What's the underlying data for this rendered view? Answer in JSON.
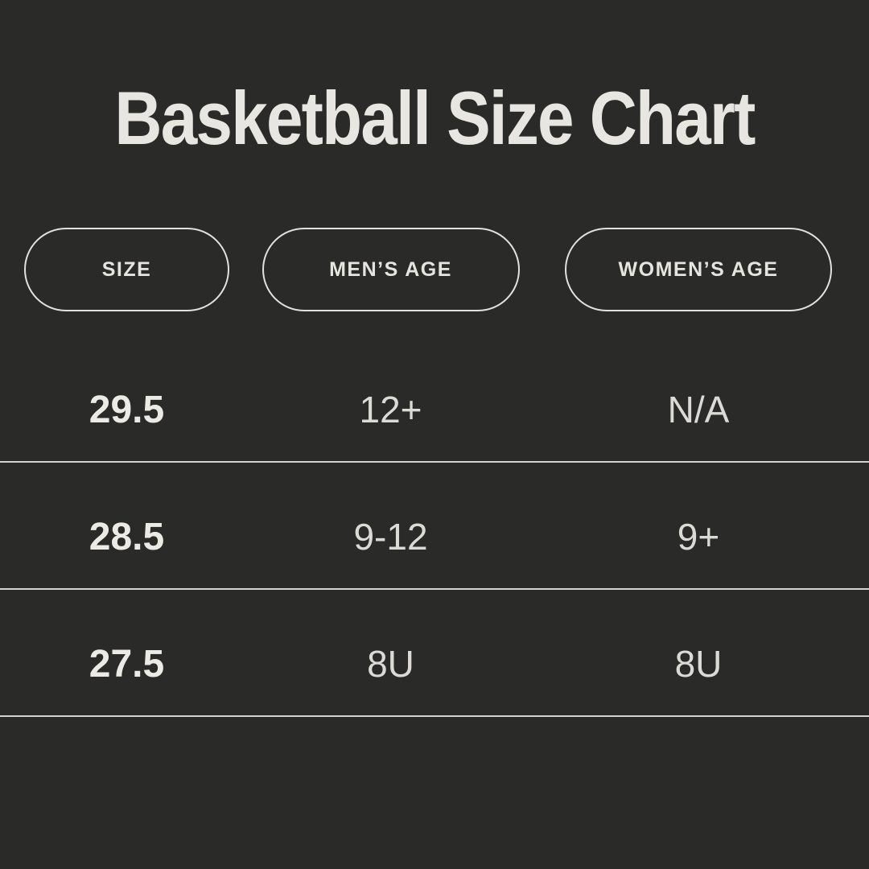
{
  "title": "Basketball Size Chart",
  "colors": {
    "background": "#2a2a28",
    "text_primary": "#e8e6e0",
    "text_secondary": "#dcdad5",
    "pill_border": "#e3e1db",
    "divider": "#d5d3ce"
  },
  "chart_data": {
    "type": "table",
    "title": "Basketball Size Chart",
    "columns": [
      "SIZE",
      "MEN’S AGE",
      "WOMEN’S AGE"
    ],
    "rows": [
      [
        "29.5",
        "12+",
        "N/A"
      ],
      [
        "28.5",
        "9-12",
        "9+"
      ],
      [
        "27.5",
        "8U",
        "8U"
      ]
    ]
  }
}
